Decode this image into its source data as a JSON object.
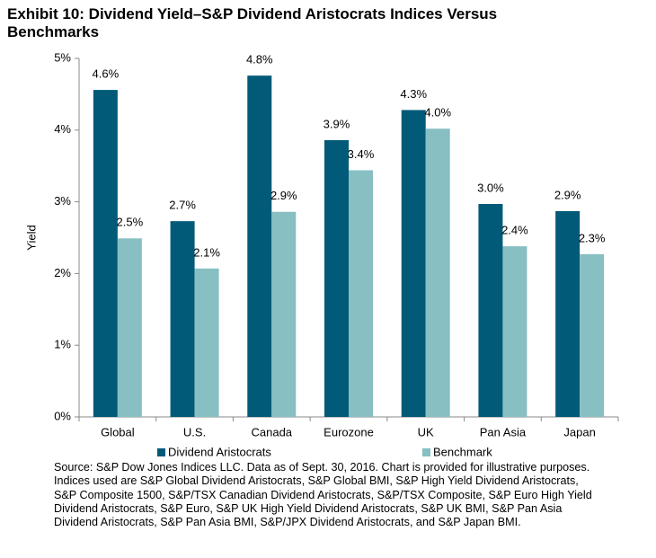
{
  "chart_data": {
    "type": "bar",
    "title": "Exhibit 10: Dividend Yield–S&P Dividend Aristocrats Indices Versus Benchmarks",
    "y_label": "Yield",
    "categories": [
      "Global",
      "U.S.",
      "Canada",
      "Eurozone",
      "UK",
      "Pan Asia",
      "Japan"
    ],
    "series": [
      {
        "name": "Dividend Aristocrats",
        "color": "#005a78",
        "values": [
          4.56,
          2.73,
          4.76,
          3.86,
          4.28,
          2.97,
          2.87
        ],
        "value_labels": [
          "4.6%",
          "2.7%",
          "4.8%",
          "3.9%",
          "4.3%",
          "3.0%",
          "2.9%"
        ]
      },
      {
        "name": "Benchmark",
        "color": "#87bfc3",
        "values": [
          2.49,
          2.07,
          2.86,
          3.44,
          4.02,
          2.38,
          2.27
        ],
        "value_labels": [
          "2.5%",
          "2.1%",
          "2.9%",
          "3.4%",
          "4.0%",
          "2.4%",
          "2.3%"
        ]
      }
    ],
    "ylim": [
      0,
      5
    ],
    "yticks": [
      {
        "value": 0,
        "label": "0%"
      },
      {
        "value": 1,
        "label": "1%"
      },
      {
        "value": 2,
        "label": "2%"
      },
      {
        "value": 3,
        "label": "3%"
      },
      {
        "value": 4,
        "label": "4%"
      },
      {
        "value": 5,
        "label": "5%"
      }
    ],
    "grid": false,
    "legend": "bottom",
    "note": "Source: S&P Dow Jones Indices LLC.  Data as of Sept. 30, 2016.  Chart is provided for illustrative purposes.  Indices used are S&P Global Dividend Aristocrats, S&P Global BMI, S&P High Yield Dividend Aristocrats, S&P Composite 1500, S&P/TSX Canadian Dividend Aristocrats, S&P/TSX Composite, S&P Euro High Yield Dividend Aristocrats, S&P Euro, S&P UK High Yield Dividend Aristocrats, S&P UK BMI, S&P Pan Asia Dividend Aristocrats, S&P Pan Asia BMI, S&P/JPX Dividend Aristocrats, and S&P Japan BMI."
  }
}
